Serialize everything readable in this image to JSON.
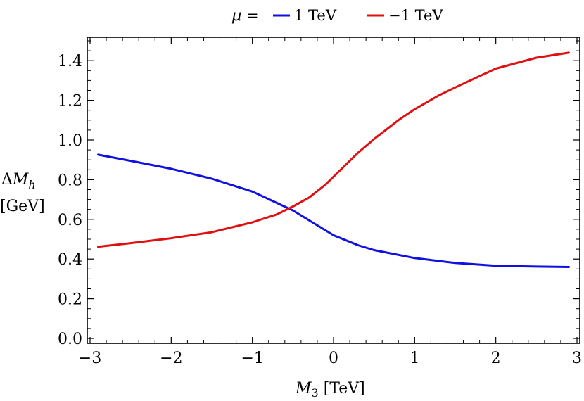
{
  "chart_data": {
    "type": "line",
    "legend_title": "μ =",
    "legend_position": "top",
    "xlabel": {
      "main": "M",
      "sub": "3",
      "unit": " [TeV]"
    },
    "ylabel": {
      "line1_prefix": "Δ",
      "line1_main": "M",
      "line1_sub": "h",
      "line2": "[GeV]"
    },
    "xlim": [
      -3,
      3
    ],
    "ylim": [
      0,
      1.5
    ],
    "x_ticks": [
      -3,
      -2,
      -1,
      0,
      1,
      2,
      3
    ],
    "x_tick_labels": [
      "−3",
      "−2",
      "−1",
      "0",
      "1",
      "2",
      "3"
    ],
    "y_ticks": [
      0.0,
      0.2,
      0.4,
      0.6,
      0.8,
      1.0,
      1.2,
      1.4
    ],
    "y_tick_labels": [
      "0.0",
      "0.2",
      "0.4",
      "0.6",
      "0.8",
      "1.0",
      "1.2",
      "1.4"
    ],
    "grid": false,
    "series": [
      {
        "name": "1 TeV",
        "color": "#1010e0",
        "x": [
          -2.9,
          -2.5,
          -2.0,
          -1.5,
          -1.0,
          -0.5,
          0.0,
          0.3,
          0.5,
          1.0,
          1.5,
          2.0,
          2.5,
          2.9
        ],
        "y": [
          0.926,
          0.895,
          0.855,
          0.805,
          0.74,
          0.645,
          0.52,
          0.47,
          0.445,
          0.405,
          0.38,
          0.366,
          0.362,
          0.36
        ]
      },
      {
        "name": "−1 TeV",
        "color": "#e01010",
        "x": [
          -2.9,
          -2.5,
          -2.0,
          -1.5,
          -1.0,
          -0.7,
          -0.5,
          -0.3,
          -0.1,
          0.1,
          0.3,
          0.5,
          0.8,
          1.0,
          1.3,
          1.5,
          2.0,
          2.5,
          2.9
        ],
        "y": [
          0.462,
          0.48,
          0.505,
          0.535,
          0.585,
          0.625,
          0.665,
          0.71,
          0.775,
          0.855,
          0.935,
          1.005,
          1.1,
          1.155,
          1.225,
          1.265,
          1.36,
          1.415,
          1.44
        ]
      }
    ]
  }
}
